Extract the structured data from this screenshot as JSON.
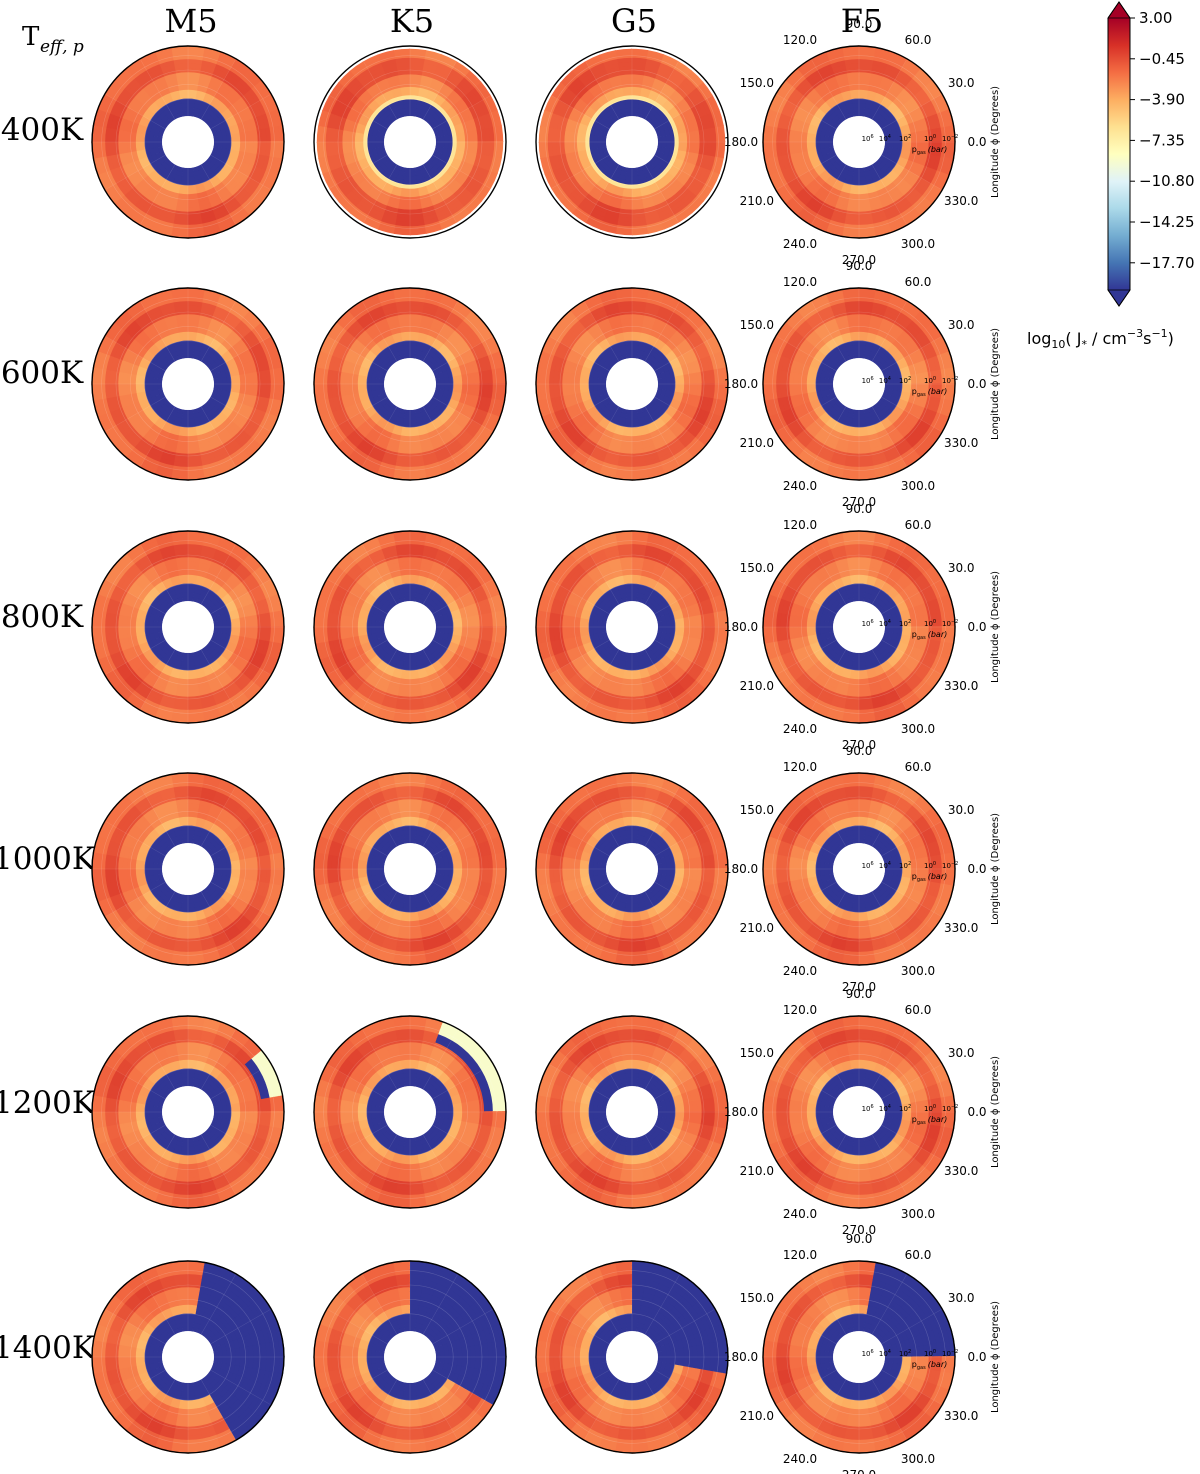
{
  "chart_data": {
    "type": "heatmap",
    "projection": "polar",
    "corner_label": {
      "main": "T",
      "sub": "eff, p"
    },
    "columns": [
      "M5",
      "K5",
      "G5",
      "F5"
    ],
    "rows": [
      "400K",
      "600K",
      "800K",
      "1000K",
      "1200K",
      "1400K"
    ],
    "angle_ticks": [
      "0.0",
      "30.0",
      "60.0",
      "90.0",
      "120.0",
      "150.0",
      "180.0",
      "210.0",
      "240.0",
      "270.0",
      "300.0",
      "330.0"
    ],
    "radial_ticks": [
      {
        "base": "10",
        "exp": "6"
      },
      {
        "base": "10",
        "exp": "4"
      },
      {
        "base": "10",
        "exp": "2"
      },
      {
        "base": "10",
        "exp": "0"
      },
      {
        "base": "10",
        "exp": "−2"
      }
    ],
    "radial_label": "p",
    "radial_label_sub": "gas",
    "radial_label_unit": "(bar)",
    "axis_label": "Longitude ϕ (Degrees)",
    "colorbar": {
      "ticks": [
        "3.00",
        "−0.45",
        "−3.90",
        "−7.35",
        "−10.80",
        "−14.25",
        "−17.70"
      ],
      "range": [
        -20,
        3
      ],
      "extend": "both",
      "colormap": "RdYlBu_r",
      "colors": [
        "#313695",
        "#4575b4",
        "#74add1",
        "#abd9e9",
        "#e0f3f8",
        "#ffffbf",
        "#fee090",
        "#fdae61",
        "#f46d43",
        "#d73027",
        "#a50026"
      ],
      "label": {
        "pre": "log",
        "sub1": "10",
        "mid": "( J",
        "sub2": "*",
        "mid2": " / cm",
        "sup1": "−3",
        "mid3": "s",
        "sup2": "−1",
        "post": ")"
      }
    },
    "panels": [
      {
        "row": "400K",
        "col": "M5",
        "inner_core": "#313695",
        "outer": [
          -2.5,
          -1.0
        ],
        "low_sector": null
      },
      {
        "row": "400K",
        "col": "K5",
        "inner_core": "#313695",
        "outer": [
          -2.5,
          -1.0
        ],
        "low_sector": null
      },
      {
        "row": "400K",
        "col": "G5",
        "inner_core": "#313695",
        "outer": [
          -2.5,
          -1.0
        ],
        "low_sector": null
      },
      {
        "row": "400K",
        "col": "F5",
        "inner_core": "#313695",
        "outer": [
          -2.5,
          -1.0
        ],
        "low_sector": null
      },
      {
        "row": "1200K",
        "col": "M5",
        "low_sector": [
          15,
          40
        ]
      },
      {
        "row": "1200K",
        "col": "K5",
        "low_sector": [
          0,
          70
        ]
      },
      {
        "row": "1400K",
        "col": "M5",
        "low_sector": [
          -60,
          80
        ]
      },
      {
        "row": "1400K",
        "col": "K5",
        "low_sector": [
          -25,
          85
        ]
      },
      {
        "row": "1400K",
        "col": "G5",
        "low_sector": [
          -10,
          90
        ]
      },
      {
        "row": "1400K",
        "col": "F5",
        "low_sector": [
          0,
          75
        ]
      }
    ]
  }
}
